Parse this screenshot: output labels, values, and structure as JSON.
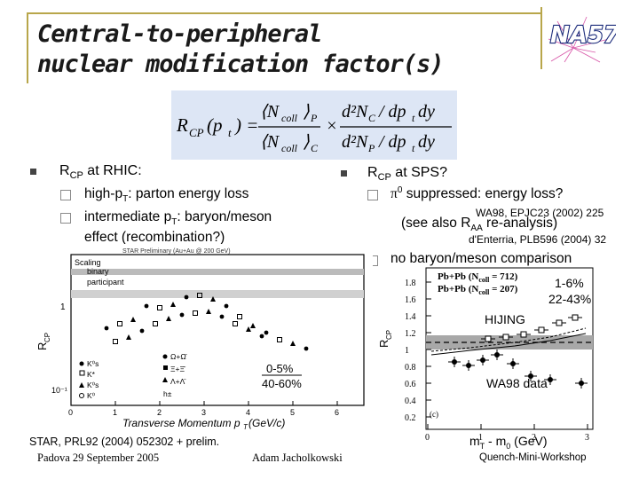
{
  "header": {
    "title_line1": "Central-to-peripheral",
    "title_line2": "nuclear modification factor(s)",
    "logo_text": "NA57"
  },
  "formula": {
    "lhs": "R",
    "lhs_sub": "CP",
    "lhs_arg": "(p",
    "lhs_arg_sub": "t",
    "num_ncoll": "⟨N",
    "num_ncoll_sub": "coll",
    "num_ncoll_close": "⟩",
    "num_ncoll_label": "P",
    "den_ncoll_label": "C",
    "num_d": "d²N",
    "num_d_sub": "C",
    "num_rest": "/ dp",
    "den_d_sub": "P",
    "dpt_sub": "t",
    "dy": "dy"
  },
  "left": {
    "heading_r": "R",
    "heading_sub": "CP",
    "heading_rest": " at RHIC:",
    "item1": "high-p",
    "item1_sub": "T",
    "item1_rest": ": parton energy loss",
    "item2": "intermediate p",
    "item2_sub": "T",
    "item2_rest": ": baryon/meson",
    "item2_cont": "effect (recombination?)"
  },
  "right": {
    "heading_r": "R",
    "heading_sub": "CP",
    "heading_rest": " at SPS?",
    "item1": "π",
    "item1_sup": "0",
    "item1_rest": " suppressed: energy loss?",
    "ref1": "WA98, EPJC23 (2002) 225",
    "see_also": "(see also R",
    "see_also_sub": "AA",
    "see_also_rest": " re-analysis)",
    "ref2": "d'Enterria, PLB596 (2004) 32",
    "item2": "no baryon/meson comparison"
  },
  "star_chart": {
    "header": "STAR Preliminary (Au+Au @ 200 GeV)",
    "scaling_label": "Scaling",
    "binary_label": "binary",
    "participant_label": "participant",
    "ylabel": "R",
    "ylabel_sub": "CP",
    "xlabel": "Transverse Momentum p",
    "xlabel_sub": "T",
    "xlabel_unit": " (GeV/c)",
    "centrality1": "0-5%",
    "centrality2": "40-60%",
    "y_ticks": [
      "1",
      "10⁻¹"
    ],
    "x_ticks": [
      "0",
      "1",
      "2",
      "3",
      "4",
      "5",
      "6"
    ],
    "legend_left": [
      "K⁰s",
      "K*",
      "K⁰s",
      "K⁰"
    ],
    "legend_right": [
      "Ω+Ω̄",
      "Ξ+Ξ̄",
      "Λ+Λ̄",
      "h±"
    ]
  },
  "sps_chart": {
    "ylabel": "R",
    "ylabel_sub": "CP",
    "xlabel": "m",
    "xlabel_sub": "T",
    "xlabel_rest": " - m",
    "xlabel_sub2": "0",
    "xlabel_unit": " (GeV)",
    "legend1": "Pb+Pb (N",
    "legend1_sub": "coll",
    "legend1_rest": " = 712)",
    "legend2": "Pb+Pb (N",
    "legend2_sub": "coll",
    "legend2_rest": " = 207)",
    "band_label1": "1-6%",
    "band_label2": "22-43%",
    "hijing_label": "HIJING",
    "wa98_label": "WA98 data",
    "panel_tag": "(c)",
    "y_ticks": [
      "1.8",
      "1.6",
      "1.4",
      "1.2",
      "1",
      "0.8",
      "0.6",
      "0.4",
      "0.2"
    ],
    "x_ticks": [
      "0",
      "1",
      "2",
      "3"
    ]
  },
  "footer": {
    "citation": "STAR, PRL92 (2004) 052302 + prelim.",
    "date_place": "Padova 29 September 2005",
    "author": "Adam Jacholkowski",
    "workshop": "Quench-Mini-Workshop"
  },
  "colors": {
    "accent_rule": "#b8a64a",
    "formula_bg": "#dde6f5",
    "band_gray": "#a8a8a8"
  }
}
